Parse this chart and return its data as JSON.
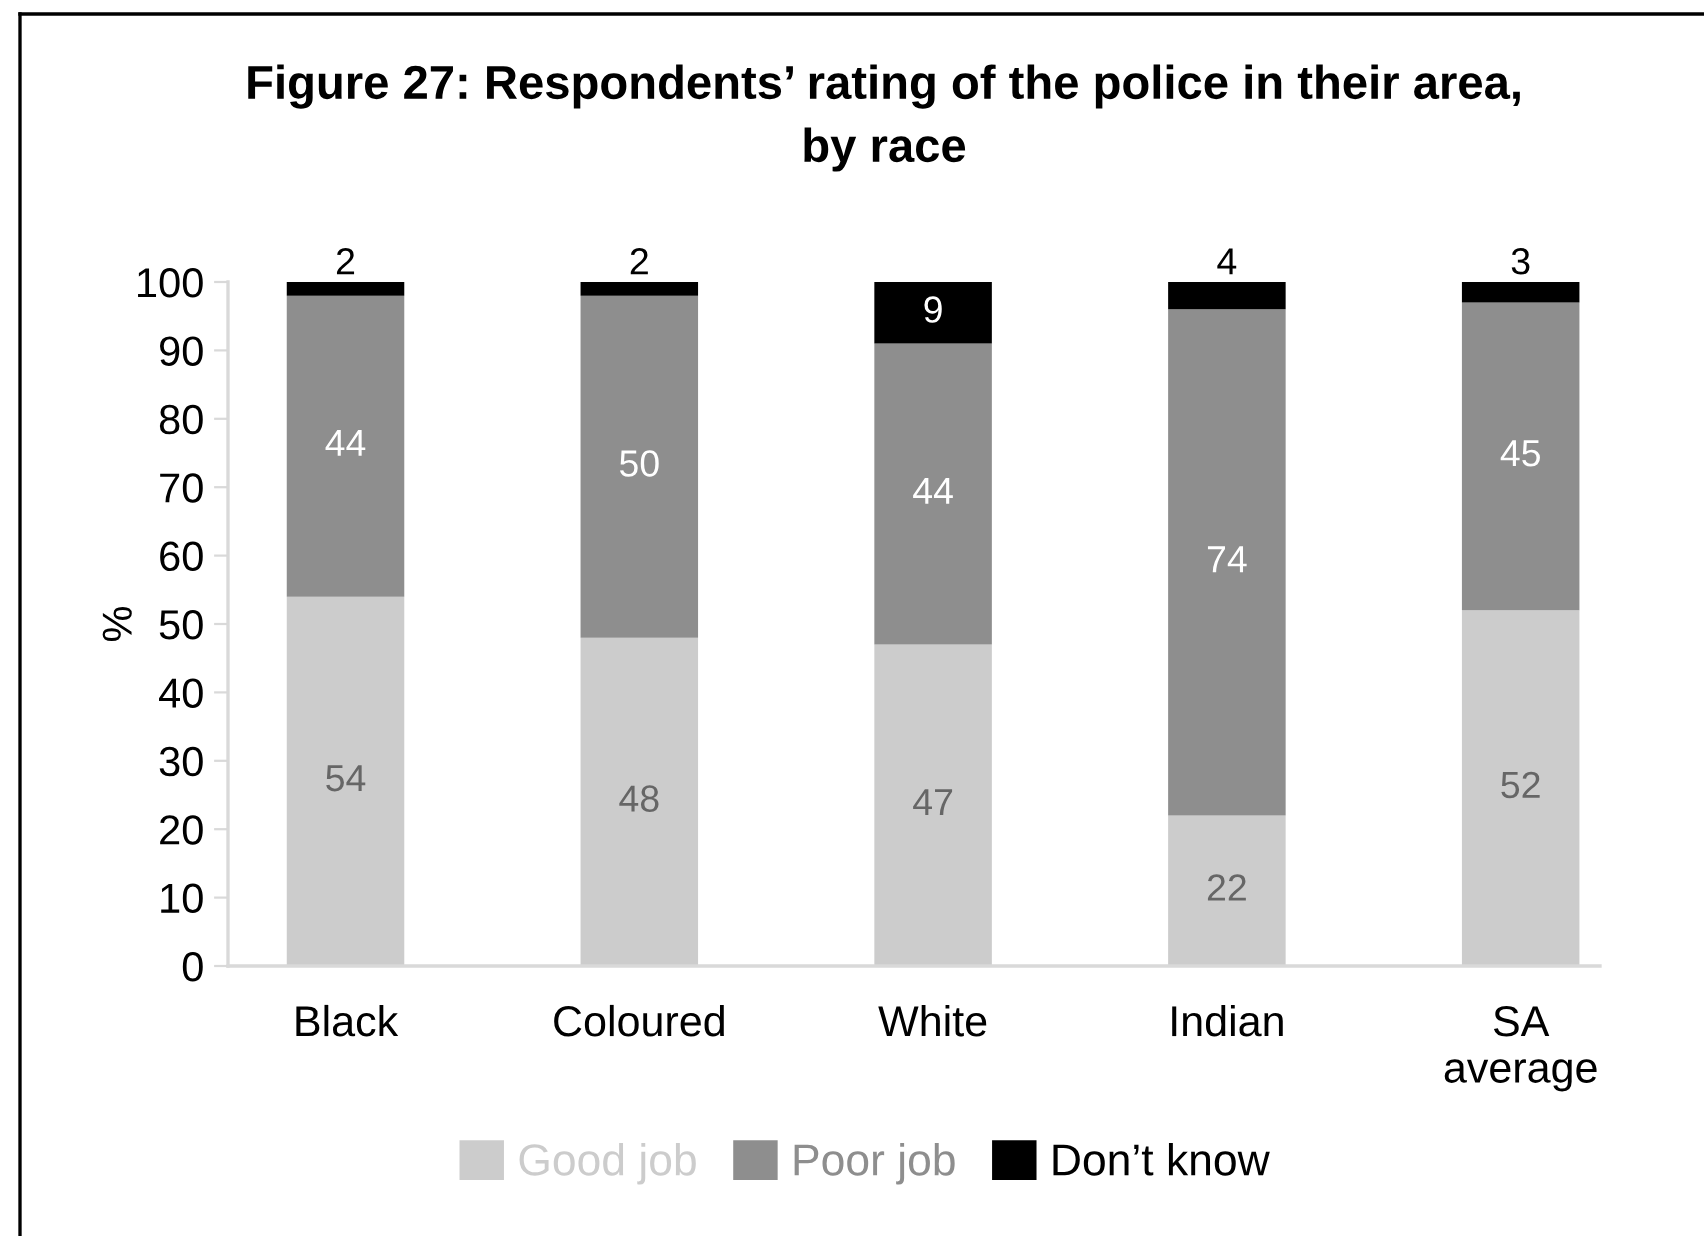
{
  "chart_data": {
    "type": "bar",
    "title": "Figure 27: Respondents’ rating of the police in their area,\nby race",
    "ylabel": "%",
    "categories": [
      "Black",
      "Coloured",
      "White",
      "Indian",
      "SA\naverage"
    ],
    "series": [
      {
        "name": "Good job",
        "color": "#cccccc",
        "values": [
          54,
          48,
          47,
          22,
          52
        ]
      },
      {
        "name": "Poor job",
        "color": "#8e8e8e",
        "values": [
          44,
          50,
          44,
          74,
          45
        ]
      },
      {
        "name": "Don’t know",
        "color": "#000000",
        "values": [
          2,
          2,
          9,
          4,
          3
        ]
      }
    ],
    "stacked": true,
    "ylim": [
      0,
      100
    ],
    "yticks": [
      0,
      10,
      20,
      30,
      40,
      50,
      60,
      70,
      80,
      90,
      100
    ],
    "grid": false,
    "legend": "bottom",
    "data_labels": true
  }
}
